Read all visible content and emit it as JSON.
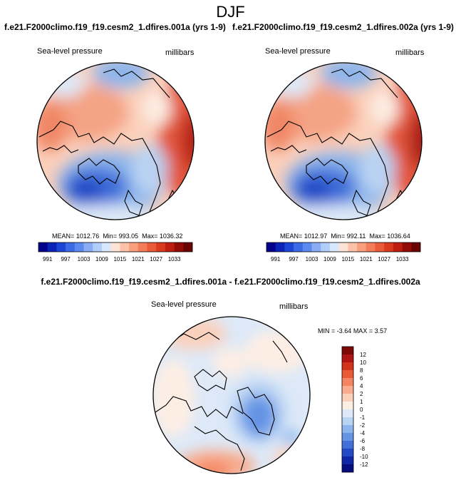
{
  "page": {
    "title": "DJF"
  },
  "panels": [
    {
      "case": "f.e21.F2000climo.f19_f19.cesm2_1.dfires.001a (yrs 1-9)",
      "variable": "Sea-level pressure",
      "units": "millibars",
      "mean_label": "MEAN= 1012.76",
      "min_label": "Min= 993.05",
      "max_label": "Max= 1036.32"
    },
    {
      "case": "f.e21.F2000climo.f19_f19.cesm2_1.dfires.002a (yrs 1-9)",
      "variable": "Sea-level pressure",
      "units": "millibars",
      "mean_label": "MEAN= 1012.97",
      "min_label": "Min= 992.11",
      "max_label": "Max= 1036.64"
    }
  ],
  "abs_colorbar": {
    "labels": [
      "991",
      "997",
      "1003",
      "1009",
      "1015",
      "1021",
      "1027",
      "1033"
    ],
    "colors": [
      "#05038e",
      "#0a24b8",
      "#1c47d6",
      "#3c6ae6",
      "#5d8aee",
      "#88adf4",
      "#b1cdf9",
      "#d8e7fc",
      "#fde3d6",
      "#fbc2a8",
      "#f8a07d",
      "#f37d58",
      "#ea5a38",
      "#d9391f",
      "#bd1d0e",
      "#930b06",
      "#6b0303"
    ]
  },
  "diff_panel": {
    "title": "f.e21.F2000climo.f19_f19.cesm2_1.dfires.001a - f.e21.F2000climo.f19_f19.cesm2_1.dfires.002a",
    "variable": "Sea-level pressure",
    "units": "millibars",
    "min_label": "MIN =",
    "min_value": "-3.64",
    "max_label": "MAX =",
    "max_value": "3.57"
  },
  "diff_colorbar": {
    "labels": [
      "12",
      "10",
      "8",
      "6",
      "4",
      "2",
      "1",
      "0",
      "-1",
      "-2",
      "-4",
      "-6",
      "-8",
      "-10",
      "-12"
    ],
    "colors": [
      "#7d0808",
      "#b01414",
      "#d3331b",
      "#ea5a36",
      "#f4845f",
      "#f8ab8d",
      "#fbd0bb",
      "#fdeee4",
      "#dde9f8",
      "#b9d3f3",
      "#8db5ec",
      "#6594e5",
      "#4170d9",
      "#2449c5",
      "#0f26a6",
      "#050d80"
    ]
  },
  "colors": {
    "ocean_blue_dark": "#2548d0",
    "ocean_blue_light": "#9cc0f4",
    "warm_red": "#e2543a",
    "neutral": "#fdf3ee"
  }
}
